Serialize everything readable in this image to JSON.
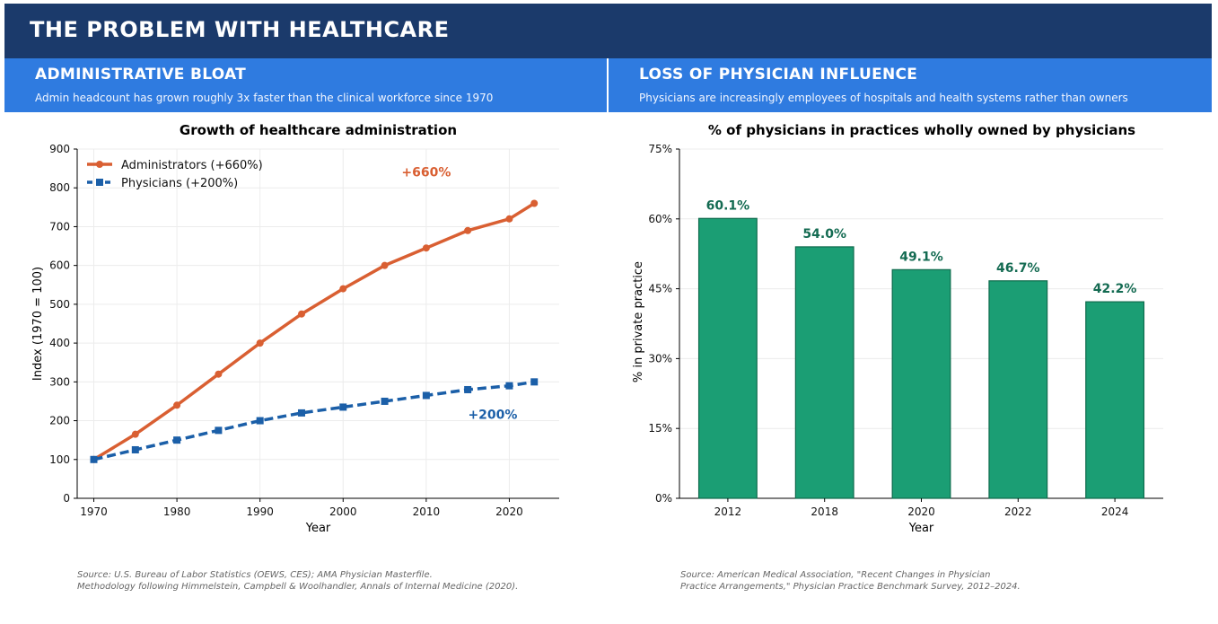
{
  "header": {
    "title": "THE PROBLEM WITH HEALTHCARE"
  },
  "panels": [
    {
      "title": "ADMINISTRATIVE BLOAT",
      "subtitle": "Admin headcount has grown roughly 3x faster than the clinical workforce since 1970"
    },
    {
      "title": "LOSS OF PHYSICIAN INFLUENCE",
      "subtitle": "Physicians are increasingly employees of hospitals and health systems rather than owners"
    }
  ],
  "colors": {
    "admin": "#d95f32",
    "physician": "#1b5fa8",
    "bar": "#1b9e74",
    "bar_edge": "#0f6b4d",
    "bar_label": "#146b52"
  },
  "chart_data": [
    {
      "type": "line",
      "title": "Growth of healthcare administration",
      "xlabel": "Year",
      "ylabel": "Index (1970 = 100)",
      "x": [
        1970,
        1975,
        1980,
        1985,
        1990,
        1995,
        2000,
        2005,
        2010,
        2015,
        2020,
        2023
      ],
      "series": [
        {
          "name": "Administrators (+660%)",
          "values": [
            100,
            165,
            240,
            320,
            400,
            475,
            540,
            600,
            645,
            690,
            720,
            760
          ]
        },
        {
          "name": "Physicians (+200%)",
          "values": [
            100,
            125,
            150,
            175,
            200,
            220,
            235,
            250,
            265,
            280,
            290,
            300
          ]
        }
      ],
      "annotations": [
        {
          "text": "+660%",
          "x": 2010,
          "y": 830
        },
        {
          "text": "+200%",
          "x": 2018,
          "y": 205
        }
      ],
      "xticks": [
        "1970",
        "1980",
        "1990",
        "2000",
        "2010",
        "2020"
      ],
      "yticks": [
        "0",
        "100",
        "200",
        "300",
        "400",
        "500",
        "600",
        "700",
        "800",
        "900"
      ],
      "xlim": [
        1968,
        2026
      ],
      "ylim": [
        0,
        900
      ],
      "grid": true,
      "legend": "top-left"
    },
    {
      "type": "bar",
      "title": "% of physicians in practices wholly owned by physicians",
      "xlabel": "Year",
      "ylabel": "% in private practice",
      "categories": [
        "2012",
        "2018",
        "2020",
        "2022",
        "2024"
      ],
      "values": [
        60.1,
        54.0,
        49.1,
        46.7,
        42.2
      ],
      "value_labels": [
        "60.1%",
        "54.0%",
        "49.1%",
        "46.7%",
        "42.2%"
      ],
      "yticks": [
        "0%",
        "15%",
        "30%",
        "45%",
        "60%",
        "75%"
      ],
      "ylim": [
        0,
        75
      ],
      "grid": true
    }
  ],
  "sources": [
    {
      "line1": "Source: U.S. Bureau of Labor Statistics (OEWS, CES); AMA Physician Masterfile.",
      "line2": "Methodology following Himmelstein, Campbell & Woolhandler, Annals of Internal Medicine (2020)."
    },
    {
      "line1": "Source: American Medical Association, \"Recent Changes in Physician",
      "line2": "Practice Arrangements,\" Physician Practice Benchmark Survey, 2012–2024."
    }
  ]
}
